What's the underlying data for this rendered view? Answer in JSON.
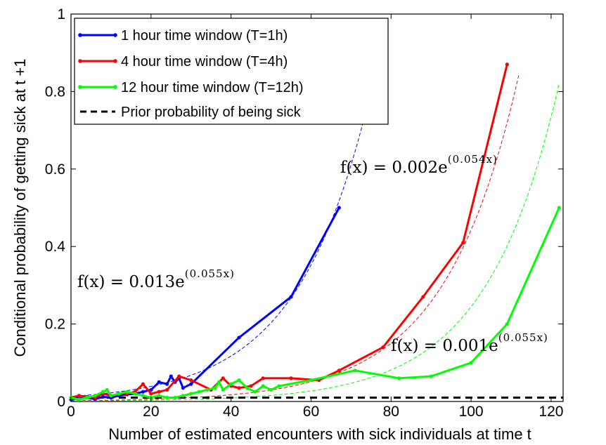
{
  "chart_data": {
    "type": "line",
    "xlabel": "Number of estimated encounters with sick individuals at time t",
    "ylabel": "Conditional probability of getting sick at t +1",
    "xlim": [
      0,
      123
    ],
    "ylim": [
      0,
      1
    ],
    "xticks": [
      "0",
      "20",
      "40",
      "60",
      "80",
      "100",
      "120"
    ],
    "yticks": [
      "0",
      "0.2",
      "0.4",
      "0.6",
      "0.8",
      "1"
    ],
    "grid": false,
    "legend_position": "top-left",
    "series": [
      {
        "name": "1 hour time window (T=1h)",
        "color": "#0000ff",
        "marker": "dot",
        "x": [
          0,
          2,
          4,
          6,
          8,
          10,
          12,
          14,
          16,
          18,
          20,
          22,
          24,
          25,
          26,
          27,
          28,
          30,
          42,
          55,
          67
        ],
        "y": [
          0.005,
          0.008,
          0.01,
          0.006,
          0.012,
          0.01,
          0.015,
          0.018,
          0.02,
          0.025,
          0.03,
          0.05,
          0.045,
          0.065,
          0.05,
          0.06,
          0.035,
          0.045,
          0.165,
          0.27,
          0.5
        ]
      },
      {
        "name": "4 hour time window (T=4h)",
        "color": "#ff0000",
        "marker": "dot",
        "x": [
          0,
          2,
          4,
          6,
          8,
          10,
          12,
          14,
          16,
          18,
          20,
          22,
          24,
          27,
          30,
          35,
          38,
          40,
          42,
          45,
          48,
          55,
          62,
          67,
          78,
          88,
          98,
          109
        ],
        "y": [
          0.01,
          0.015,
          0.012,
          0.01,
          0.02,
          0.015,
          0.02,
          0.02,
          0.025,
          0.045,
          0.02,
          0.025,
          0.03,
          0.065,
          0.055,
          0.03,
          0.06,
          0.04,
          0.035,
          0.04,
          0.06,
          0.06,
          0.055,
          0.08,
          0.14,
          0.27,
          0.41,
          0.87
        ]
      },
      {
        "name": "12 hour time window (T=12h)",
        "color": "#00ff00",
        "marker": "dot",
        "x": [
          0,
          2,
          4,
          6,
          8,
          9,
          10,
          12,
          14,
          16,
          18,
          20,
          22,
          24,
          26,
          28,
          30,
          32,
          34,
          36,
          37,
          38,
          40,
          42,
          44,
          46,
          48,
          50,
          52,
          60,
          71,
          82,
          90,
          100,
          109,
          122
        ],
        "y": [
          0.01,
          0.005,
          0.01,
          0.015,
          0.025,
          0.03,
          0.015,
          0.02,
          0.025,
          0.02,
          0.015,
          0.01,
          0.015,
          0.01,
          0.01,
          0.015,
          0.02,
          0.025,
          0.03,
          0.035,
          0.05,
          0.03,
          0.045,
          0.055,
          0.035,
          0.025,
          0.04,
          0.03,
          0.04,
          0.055,
          0.08,
          0.06,
          0.065,
          0.1,
          0.2,
          0.5
        ]
      },
      {
        "name": "Prior probability of being sick",
        "color": "#000000",
        "style": "dashed",
        "x": [
          0,
          123
        ],
        "y": [
          0.01,
          0.01
        ]
      }
    ],
    "fits": [
      {
        "color": "#0000ff",
        "a": 0.013,
        "b": 0.055,
        "x_range": [
          0,
          74
        ]
      },
      {
        "color": "#ff0000",
        "a": 0.002,
        "b": 0.054,
        "x_range": [
          0,
          112
        ]
      },
      {
        "color": "#00ff00",
        "a": 0.001,
        "b": 0.055,
        "x_range": [
          0,
          122
        ]
      }
    ],
    "annotations": [
      {
        "text": "f(x) = 0.013e",
        "exponent": "(0.055x)",
        "near": "blue"
      },
      {
        "text": "f(x) = 0.002e",
        "exponent": "(0.054x)",
        "near": "red"
      },
      {
        "text": "f(x) = 0.001e",
        "exponent": "(0.055x)",
        "near": "green"
      }
    ]
  }
}
